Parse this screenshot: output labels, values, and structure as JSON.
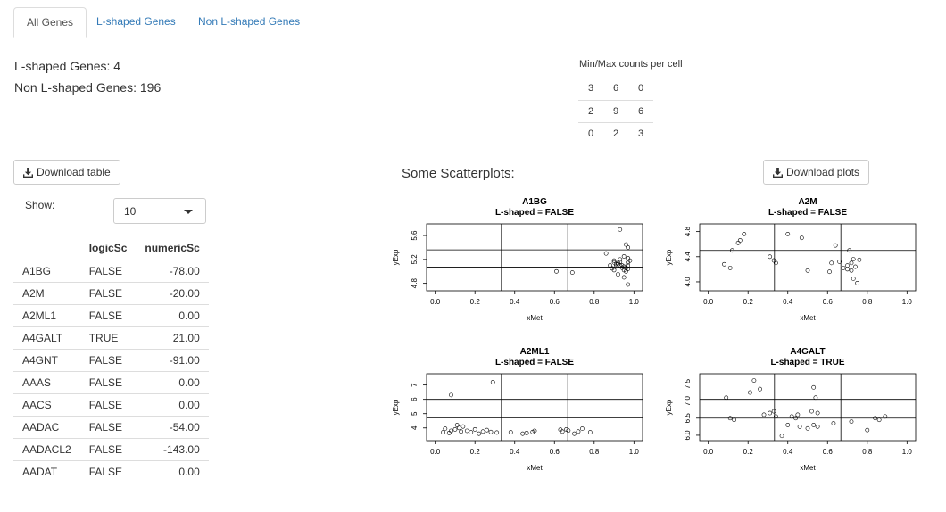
{
  "tabs": [
    {
      "label": "All Genes",
      "active": true
    },
    {
      "label": "L-shaped Genes",
      "active": false
    },
    {
      "label": "Non L-shaped Genes",
      "active": false
    }
  ],
  "summary": {
    "l_shaped": "L-shaped Genes: 4",
    "non_l_shaped": "Non L-shaped Genes: 196"
  },
  "minmax": {
    "title": "Min/Max counts per cell",
    "rows": [
      [
        "3",
        "6",
        "0"
      ],
      [
        "2",
        "9",
        "6"
      ],
      [
        "0",
        "2",
        "3"
      ]
    ]
  },
  "download_table_label": "Download table",
  "download_plots_label": "Download plots",
  "show": {
    "label": "Show:",
    "value": "10"
  },
  "gene_table": {
    "headers": [
      "",
      "logicSc",
      "numericSc"
    ],
    "rows": [
      [
        "A1BG",
        "FALSE",
        "-78.00"
      ],
      [
        "A2M",
        "FALSE",
        "-20.00"
      ],
      [
        "A2ML1",
        "FALSE",
        "0.00"
      ],
      [
        "A4GALT",
        "TRUE",
        "21.00"
      ],
      [
        "A4GNT",
        "FALSE",
        "-91.00"
      ],
      [
        "AAAS",
        "FALSE",
        "0.00"
      ],
      [
        "AACS",
        "FALSE",
        "0.00"
      ],
      [
        "AADAC",
        "FALSE",
        "-54.00"
      ],
      [
        "AADACL2",
        "FALSE",
        "-143.00"
      ],
      [
        "AADAT",
        "FALSE",
        "0.00"
      ]
    ]
  },
  "plots_title": "Some Scatterplots:",
  "chart_data": [
    {
      "type": "scatter",
      "title": "A1BG",
      "subtitle": "L-shaped =  FALSE",
      "xlabel": "xMet",
      "ylabel": "yExp",
      "xlim": [
        0,
        1
      ],
      "ylim": [
        4.72,
        5.75
      ],
      "xticks": [
        "0.0",
        "0.2",
        "0.4",
        "0.6",
        "0.8",
        "1.0"
      ],
      "yticks": [
        {
          "v": 4.8,
          "l": "4.8"
        },
        {
          "v": 5.2,
          "l": "5.2"
        },
        {
          "v": 5.6,
          "l": "5.6"
        }
      ],
      "vlines": [
        0.333,
        0.667
      ],
      "hlines": [
        5.36,
        5.07
      ],
      "x": [
        0.93,
        0.96,
        0.97,
        0.86,
        0.61,
        0.69,
        0.97,
        0.98,
        0.9,
        0.91,
        0.92,
        0.93,
        0.94,
        0.95,
        0.96,
        0.97,
        0.88,
        0.89,
        0.9,
        0.91,
        0.92,
        0.93,
        0.94,
        0.95,
        0.96,
        0.97,
        0.92,
        0.95,
        0.97,
        0.93,
        0.9,
        0.95,
        0.97
      ],
      "y": [
        5.7,
        5.45,
        5.4,
        5.3,
        5.0,
        4.98,
        5.22,
        5.18,
        5.15,
        5.12,
        5.14,
        5.16,
        5.1,
        5.08,
        5.06,
        5.04,
        5.1,
        5.05,
        5.02,
        5.08,
        5.12,
        5.1,
        5.06,
        5.02,
        5.0,
        5.15,
        4.95,
        4.9,
        4.78,
        5.2,
        5.18,
        5.25,
        5.1
      ]
    },
    {
      "type": "scatter",
      "title": "A2M",
      "subtitle": "L-shaped =  FALSE",
      "xlabel": "xMet",
      "ylabel": "yExp",
      "xlim": [
        0,
        1
      ],
      "ylim": [
        3.9,
        4.88
      ],
      "xticks": [
        "0.0",
        "0.2",
        "0.4",
        "0.6",
        "0.8",
        "1.0"
      ],
      "yticks": [
        {
          "v": 4.0,
          "l": "4.0"
        },
        {
          "v": 4.4,
          "l": "4.4"
        },
        {
          "v": 4.8,
          "l": "4.8"
        }
      ],
      "vlines": [
        0.333,
        0.667
      ],
      "hlines": [
        4.5,
        4.22
      ],
      "x": [
        0.08,
        0.12,
        0.15,
        0.16,
        0.18,
        0.11,
        0.31,
        0.33,
        0.4,
        0.47,
        0.34,
        0.5,
        0.61,
        0.64,
        0.66,
        0.71,
        0.73,
        0.68,
        0.7,
        0.72,
        0.74,
        0.72,
        0.73,
        0.75,
        0.76,
        0.7,
        0.62
      ],
      "y": [
        4.28,
        4.5,
        4.62,
        4.66,
        4.76,
        4.22,
        4.4,
        4.34,
        4.76,
        4.7,
        4.3,
        4.18,
        4.16,
        4.58,
        4.32,
        4.5,
        4.36,
        4.22,
        4.26,
        4.18,
        4.24,
        4.3,
        4.05,
        3.98,
        4.35,
        4.2,
        4.3
      ]
    },
    {
      "type": "scatter",
      "title": "A2ML1",
      "subtitle": "L-shaped =  FALSE",
      "xlabel": "xMet",
      "ylabel": "yExp",
      "xlim": [
        0,
        1
      ],
      "ylim": [
        3.3,
        7.6
      ],
      "xticks": [
        "0.0",
        "0.2",
        "0.4",
        "0.6",
        "0.8",
        "1.0"
      ],
      "yticks": [
        {
          "v": 4,
          "l": "4"
        },
        {
          "v": 5,
          "l": "5"
        },
        {
          "v": 6,
          "l": "6"
        },
        {
          "v": 7,
          "l": "7"
        }
      ],
      "vlines": [
        0.333,
        0.667
      ],
      "hlines": [
        6.0,
        4.7
      ],
      "x": [
        0.04,
        0.05,
        0.07,
        0.08,
        0.1,
        0.11,
        0.13,
        0.14,
        0.16,
        0.18,
        0.2,
        0.22,
        0.24,
        0.26,
        0.28,
        0.29,
        0.31,
        0.38,
        0.44,
        0.46,
        0.49,
        0.5,
        0.63,
        0.64,
        0.66,
        0.67,
        0.7,
        0.72,
        0.74,
        0.78,
        0.08,
        0.12
      ],
      "y": [
        3.7,
        3.95,
        3.65,
        3.8,
        3.9,
        4.2,
        3.75,
        4.1,
        3.8,
        3.7,
        3.9,
        3.6,
        3.75,
        3.85,
        3.72,
        7.2,
        3.68,
        3.7,
        3.6,
        3.65,
        3.72,
        3.8,
        3.88,
        3.75,
        3.9,
        3.82,
        3.6,
        3.75,
        3.95,
        3.7,
        6.3,
        4.0
      ]
    },
    {
      "type": "scatter",
      "title": "A4GALT",
      "subtitle": "L-shaped =  TRUE",
      "xlabel": "xMet",
      "ylabel": "yExp",
      "xlim": [
        0,
        1
      ],
      "ylim": [
        5.92,
        7.72
      ],
      "xticks": [
        "0.0",
        "0.2",
        "0.4",
        "0.6",
        "0.8",
        "1.0"
      ],
      "yticks": [
        {
          "v": 6.0,
          "l": "6.0"
        },
        {
          "v": 6.5,
          "l": "6.5"
        },
        {
          "v": 7.0,
          "l": "7.0"
        },
        {
          "v": 7.5,
          "l": "7.5"
        }
      ],
      "vlines": [
        0.333,
        0.667
      ],
      "hlines": [
        7.05,
        6.5
      ],
      "x": [
        0.09,
        0.11,
        0.13,
        0.21,
        0.23,
        0.26,
        0.28,
        0.31,
        0.33,
        0.34,
        0.37,
        0.4,
        0.42,
        0.44,
        0.45,
        0.46,
        0.5,
        0.52,
        0.53,
        0.54,
        0.55,
        0.53,
        0.55,
        0.63,
        0.72,
        0.8,
        0.84,
        0.86,
        0.89
      ],
      "y": [
        7.1,
        6.5,
        6.45,
        7.25,
        7.6,
        7.35,
        6.6,
        6.65,
        6.7,
        6.55,
        5.98,
        6.3,
        6.55,
        6.5,
        6.6,
        6.25,
        6.2,
        6.7,
        7.4,
        7.1,
        6.65,
        6.3,
        6.25,
        6.35,
        6.4,
        6.15,
        6.5,
        6.45,
        6.55
      ]
    }
  ]
}
